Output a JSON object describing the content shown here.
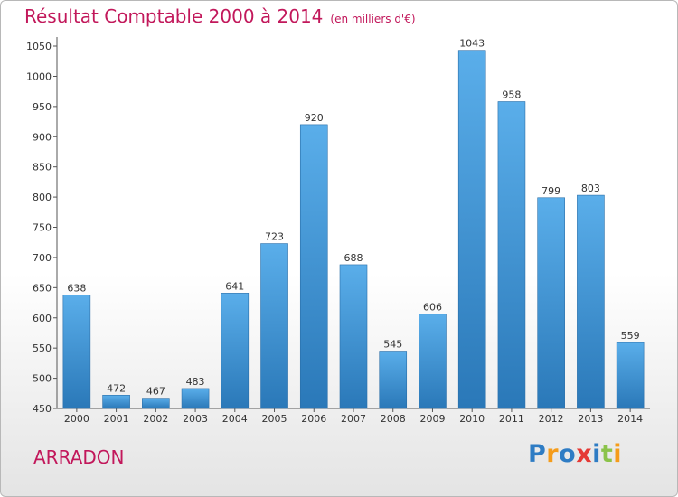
{
  "header": {
    "title": "Résultat Comptable 2000 à 2014",
    "subtitle": "(en milliers d'€)"
  },
  "commune": "ARRADON",
  "logo": {
    "text": "Proxiti",
    "letters": [
      {
        "ch": "P",
        "color": "#2e7cc4"
      },
      {
        "ch": "r",
        "color": "#f59c1a"
      },
      {
        "ch": "o",
        "color": "#2e7cc4"
      },
      {
        "ch": "x",
        "color": "#e53935"
      },
      {
        "ch": "i",
        "color": "#2e7cc4"
      },
      {
        "ch": "t",
        "color": "#8bc34a"
      },
      {
        "ch": "i",
        "color": "#f59c1a"
      }
    ]
  },
  "chart_data": {
    "type": "bar",
    "title": "Résultat Comptable 2000 à 2014",
    "subtitle": "(en milliers d'€)",
    "categories": [
      "2000",
      "2001",
      "2002",
      "2003",
      "2004",
      "2005",
      "2006",
      "2007",
      "2008",
      "2009",
      "2010",
      "2011",
      "2012",
      "2013",
      "2014"
    ],
    "values": [
      638,
      472,
      467,
      483,
      641,
      723,
      920,
      688,
      545,
      606,
      1043,
      958,
      799,
      803,
      559
    ],
    "ylim": [
      450,
      1065
    ],
    "yticks": [
      450,
      500,
      550,
      600,
      650,
      700,
      750,
      800,
      850,
      900,
      950,
      1000,
      1050
    ],
    "grid": false,
    "bar_color": "#3d93d6",
    "xlabel": "",
    "ylabel": ""
  }
}
